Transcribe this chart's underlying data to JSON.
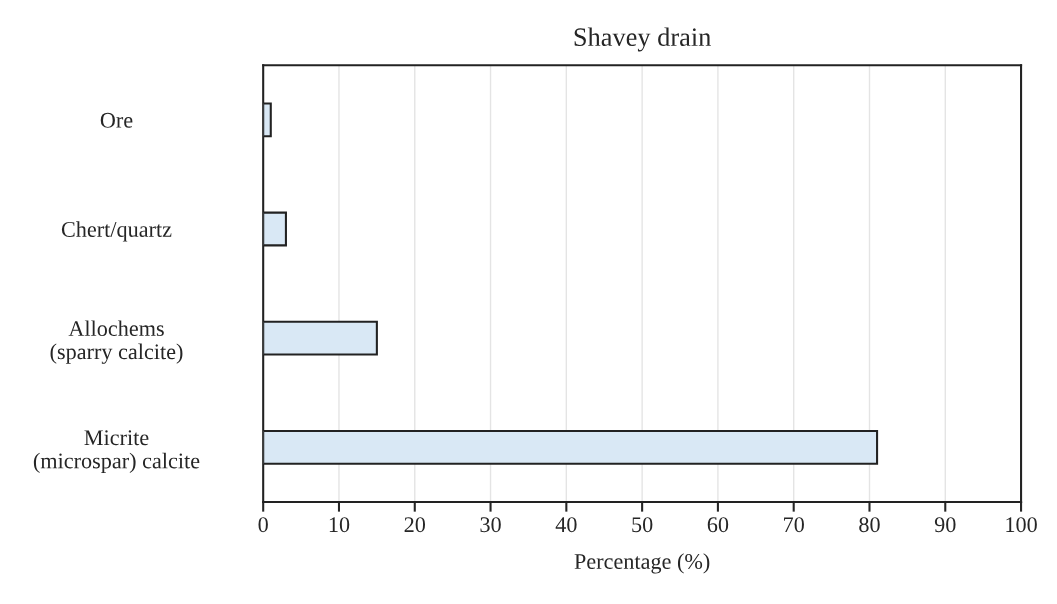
{
  "chart_data": {
    "type": "bar",
    "orientation": "horizontal",
    "title": "Shavey drain",
    "xlabel": "Percentage (%)",
    "categories": [
      "Ore",
      "Chert/quartz",
      "Allochems\n(sparry calcite)",
      "Micrite\n(microspar) calcite"
    ],
    "values": [
      1,
      3,
      15,
      81
    ],
    "color": "#d9e8f5",
    "xlim": [
      0,
      100
    ],
    "xticks": [
      0,
      10,
      20,
      30,
      40,
      50,
      60,
      70,
      80,
      90,
      100
    ],
    "grid": "x"
  }
}
